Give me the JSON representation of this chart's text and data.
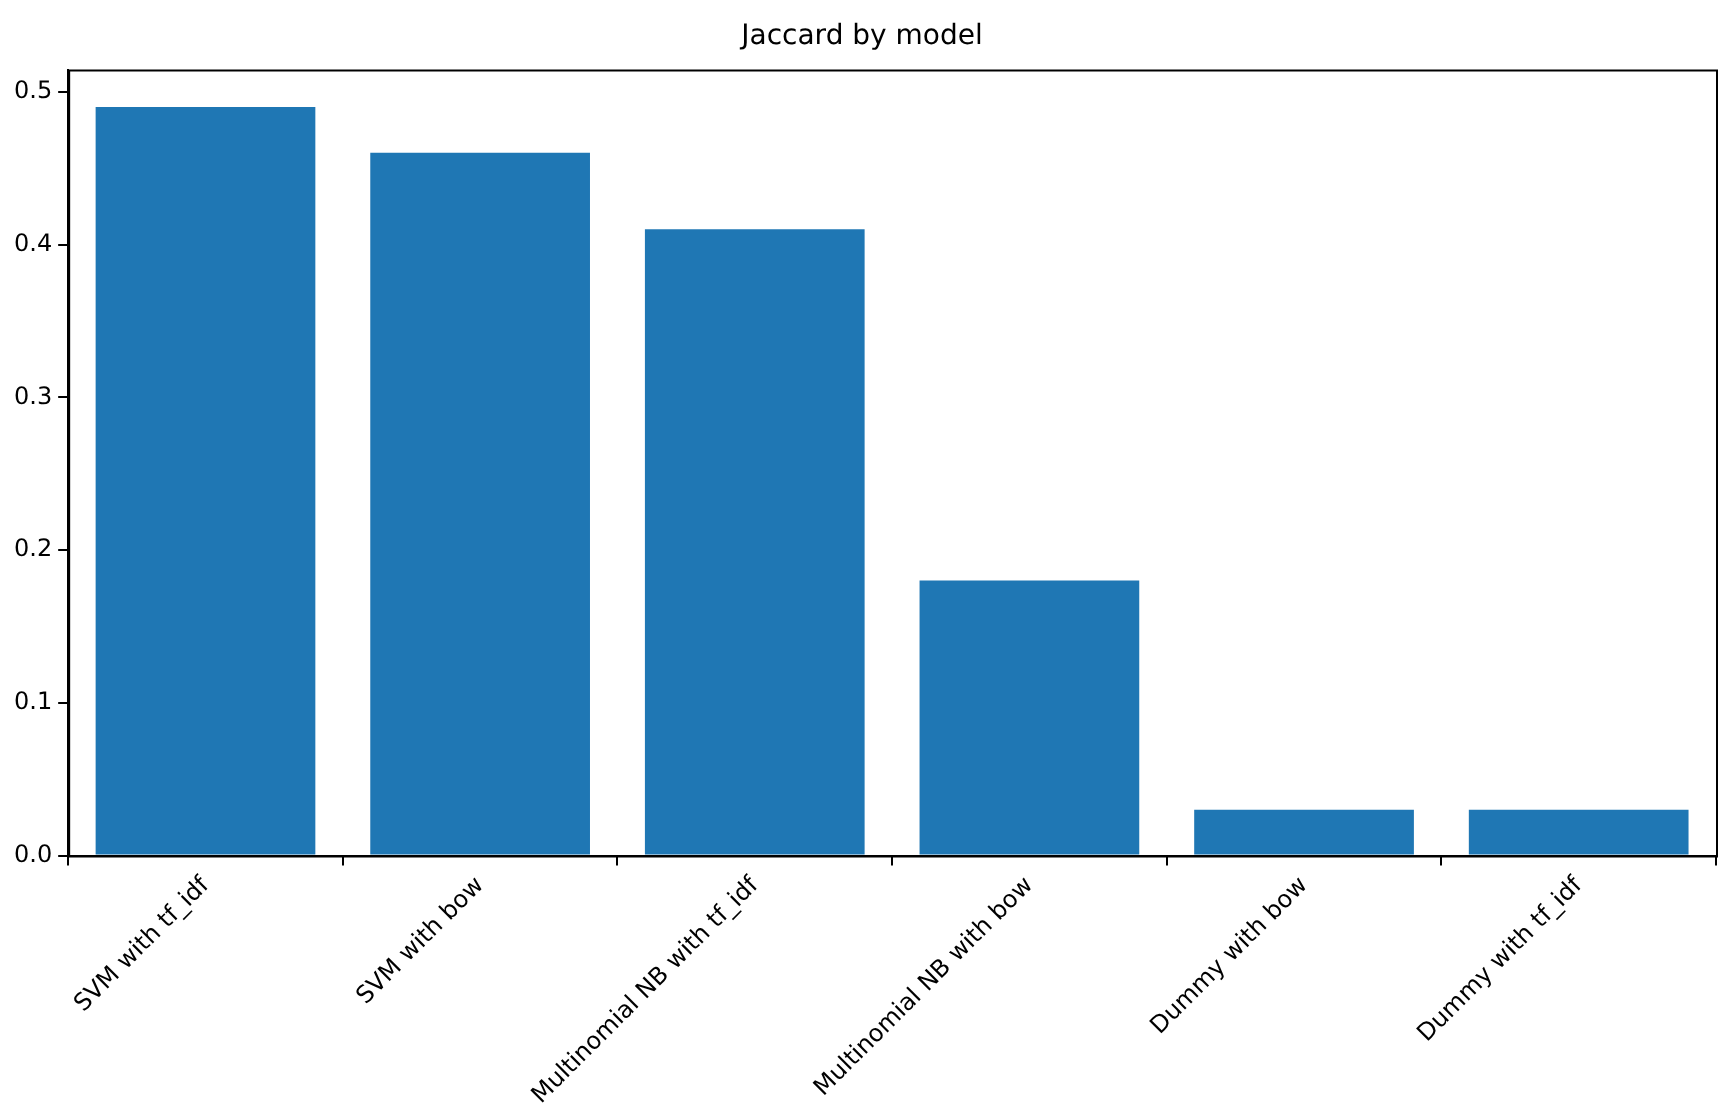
{
  "chart_data": {
    "type": "bar",
    "title": "Jaccard by model",
    "categories": [
      "SVM with tf_idf",
      "SVM with bow",
      "Multinomial NB with tf_idf",
      "Multinomial NB with bow",
      "Dummy with bow",
      "Dummy with tf_idf"
    ],
    "values": [
      0.49,
      0.46,
      0.41,
      0.18,
      0.03,
      0.03
    ],
    "color": "#1f77b4",
    "ylim": [
      0,
      0.5145
    ],
    "yticks": [
      {
        "value": 0,
        "label": "0.0"
      },
      0.1,
      0.2,
      0.3,
      0.4,
      0.5
    ],
    "grid": false,
    "legend": false
  }
}
